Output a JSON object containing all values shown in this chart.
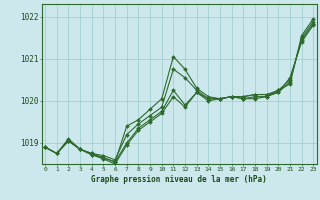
{
  "xlabel": "Graphe pression niveau de la mer (hPa)",
  "hours": [
    0,
    1,
    2,
    3,
    4,
    5,
    6,
    7,
    8,
    9,
    10,
    11,
    12,
    13,
    14,
    15,
    16,
    17,
    18,
    19,
    20,
    21,
    22,
    23
  ],
  "ylim": [
    1018.5,
    1022.3
  ],
  "yticks": [
    1019,
    1020,
    1021,
    1022
  ],
  "background_color": "#cce8ec",
  "grid_color": "#99cccc",
  "line_color": "#2d6a2d",
  "series": [
    [
      1018.9,
      1018.75,
      1019.1,
      1018.85,
      1018.75,
      1018.65,
      1018.55,
      1019.4,
      1019.55,
      1019.8,
      1020.05,
      1021.05,
      1020.75,
      1020.3,
      1020.1,
      1020.05,
      1020.1,
      1020.05,
      1020.05,
      1020.1,
      1020.25,
      1020.4,
      1021.55,
      1021.95
    ],
    [
      1018.9,
      1018.75,
      1019.05,
      1018.85,
      1018.75,
      1018.7,
      1018.6,
      1019.2,
      1019.45,
      1019.65,
      1019.85,
      1020.75,
      1020.55,
      1020.25,
      1020.05,
      1020.05,
      1020.1,
      1020.05,
      1020.1,
      1020.1,
      1020.2,
      1020.45,
      1021.5,
      1021.88
    ],
    [
      1018.9,
      1018.75,
      1019.05,
      1018.85,
      1018.72,
      1018.65,
      1018.55,
      1019.0,
      1019.35,
      1019.55,
      1019.75,
      1020.25,
      1019.9,
      1020.2,
      1020.05,
      1020.05,
      1020.1,
      1020.1,
      1020.15,
      1020.15,
      1020.25,
      1020.5,
      1021.45,
      1021.83
    ],
    [
      1018.9,
      1018.75,
      1019.05,
      1018.85,
      1018.72,
      1018.62,
      1018.5,
      1018.95,
      1019.3,
      1019.5,
      1019.7,
      1020.1,
      1019.85,
      1020.2,
      1020.0,
      1020.05,
      1020.1,
      1020.1,
      1020.15,
      1020.15,
      1020.2,
      1020.55,
      1021.4,
      1021.8
    ]
  ]
}
